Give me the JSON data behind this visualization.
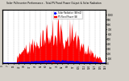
{
  "title": "Solar PV/Inverter Performance - Total PV Panel Power Output & Solar Radiation",
  "ylim": [
    0,
    1100
  ],
  "xlim": [
    0,
    143
  ],
  "bg_color": "#d4d0c8",
  "plot_bg": "#ffffff",
  "grid_color": "#aaaaaa",
  "bar_color": "#ff0000",
  "dot_color": "#0000ff",
  "bar_alpha": 1.0,
  "num_points": 144,
  "pv_peak": 1050,
  "rad_peak": 50,
  "legend_pv_label": "PV Panel Power (W)",
  "legend_rad_label": "Solar Radiation (W/m2)",
  "legend_pv_color": "#ff0000",
  "legend_rad_color": "#0000ff",
  "yticks": [
    0,
    100,
    200,
    300,
    400,
    500,
    600,
    700,
    800,
    900,
    1000
  ],
  "title_fontsize": 2.2,
  "tick_fontsize": 2.0
}
